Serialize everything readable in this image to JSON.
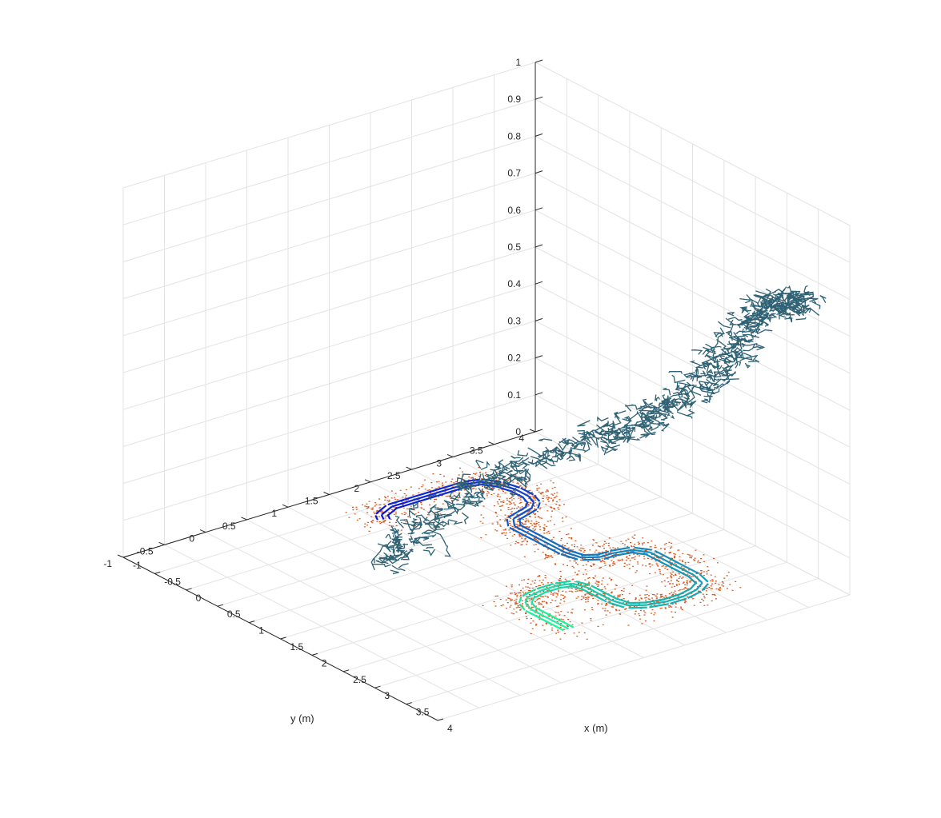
{
  "chart_data": {
    "type": "3d-line-scatter",
    "title": "",
    "xlabel": "x (m)",
    "ylabel": "y (m)",
    "zlabel": "",
    "xlim": [
      -1,
      4
    ],
    "ylim": [
      -1,
      4
    ],
    "zlim": [
      0,
      1
    ],
    "xticks": [
      "-1",
      "-0.5",
      "0",
      "0.5",
      "1",
      "1.5",
      "2",
      "2.5",
      "3",
      "3.5",
      "4"
    ],
    "yticks": [
      "-1",
      "-0.5",
      "0",
      "0.5",
      "1",
      "1.5",
      "2",
      "2.5",
      "3",
      "3.5",
      "4"
    ],
    "zticks": [
      "0",
      "0.1",
      "0.2",
      "0.3",
      "0.4",
      "0.5",
      "0.6",
      "0.7",
      "0.8",
      "0.9",
      "1"
    ],
    "grid": true,
    "colors": {
      "tree": "#2f6274",
      "points": "#d9541a",
      "track_start": "#0a14d8",
      "track_end": "#19f5a0",
      "grid": "#e3e3e3",
      "axis": "#262626"
    },
    "track_loops": [
      {
        "x": -0.2,
        "y": 1.45,
        "dx": 0.06
      },
      {
        "x": -0.2,
        "y": 1.5,
        "dx": 0.0
      },
      {
        "x": -0.2,
        "y": 1.55,
        "dx": -0.06
      }
    ],
    "track_path": [
      [
        -0.2,
        1.55
      ],
      [
        -0.3,
        1.6
      ],
      [
        -0.4,
        1.8
      ],
      [
        -0.4,
        2.0
      ],
      [
        -0.4,
        2.4
      ],
      [
        -0.4,
        2.7
      ],
      [
        -0.35,
        2.85
      ],
      [
        -0.2,
        2.95
      ],
      [
        0.0,
        3.0
      ],
      [
        0.2,
        3.0
      ],
      [
        0.35,
        2.95
      ],
      [
        0.45,
        2.85
      ],
      [
        0.5,
        2.7
      ],
      [
        0.55,
        2.55
      ],
      [
        0.7,
        2.45
      ],
      [
        0.9,
        2.45
      ],
      [
        1.1,
        2.45
      ],
      [
        1.5,
        2.45
      ],
      [
        1.7,
        2.5
      ],
      [
        1.8,
        2.65
      ],
      [
        1.8,
        2.8
      ],
      [
        1.85,
        3.0
      ],
      [
        2.0,
        3.1
      ],
      [
        2.2,
        3.1
      ],
      [
        2.4,
        3.1
      ],
      [
        2.7,
        3.1
      ],
      [
        2.9,
        3.05
      ],
      [
        3.0,
        2.9
      ],
      [
        3.05,
        2.7
      ],
      [
        3.05,
        2.5
      ],
      [
        3.0,
        2.3
      ],
      [
        2.9,
        2.15
      ],
      [
        2.7,
        2.1
      ],
      [
        2.5,
        2.1
      ],
      [
        2.3,
        2.1
      ],
      [
        2.15,
        2.05
      ],
      [
        2.1,
        1.9
      ],
      [
        2.1,
        1.7
      ],
      [
        2.15,
        1.5
      ],
      [
        2.25,
        1.4
      ],
      [
        2.4,
        1.35
      ],
      [
        2.8,
        1.35
      ],
      [
        3.0,
        1.35
      ]
    ],
    "tree_path": [
      [
        1.0,
        0.7,
        0.05
      ],
      [
        1.1,
        1.0,
        0.12
      ],
      [
        1.3,
        1.5,
        0.22
      ],
      [
        1.7,
        1.9,
        0.3
      ],
      [
        2.0,
        2.5,
        0.35
      ],
      [
        2.4,
        2.8,
        0.42
      ],
      [
        2.8,
        3.0,
        0.5
      ],
      [
        3.1,
        3.1,
        0.6
      ],
      [
        3.35,
        3.2,
        0.7
      ],
      [
        3.55,
        3.3,
        0.78
      ],
      [
        3.8,
        3.4,
        0.82
      ],
      [
        4.0,
        3.4,
        0.83
      ]
    ]
  }
}
